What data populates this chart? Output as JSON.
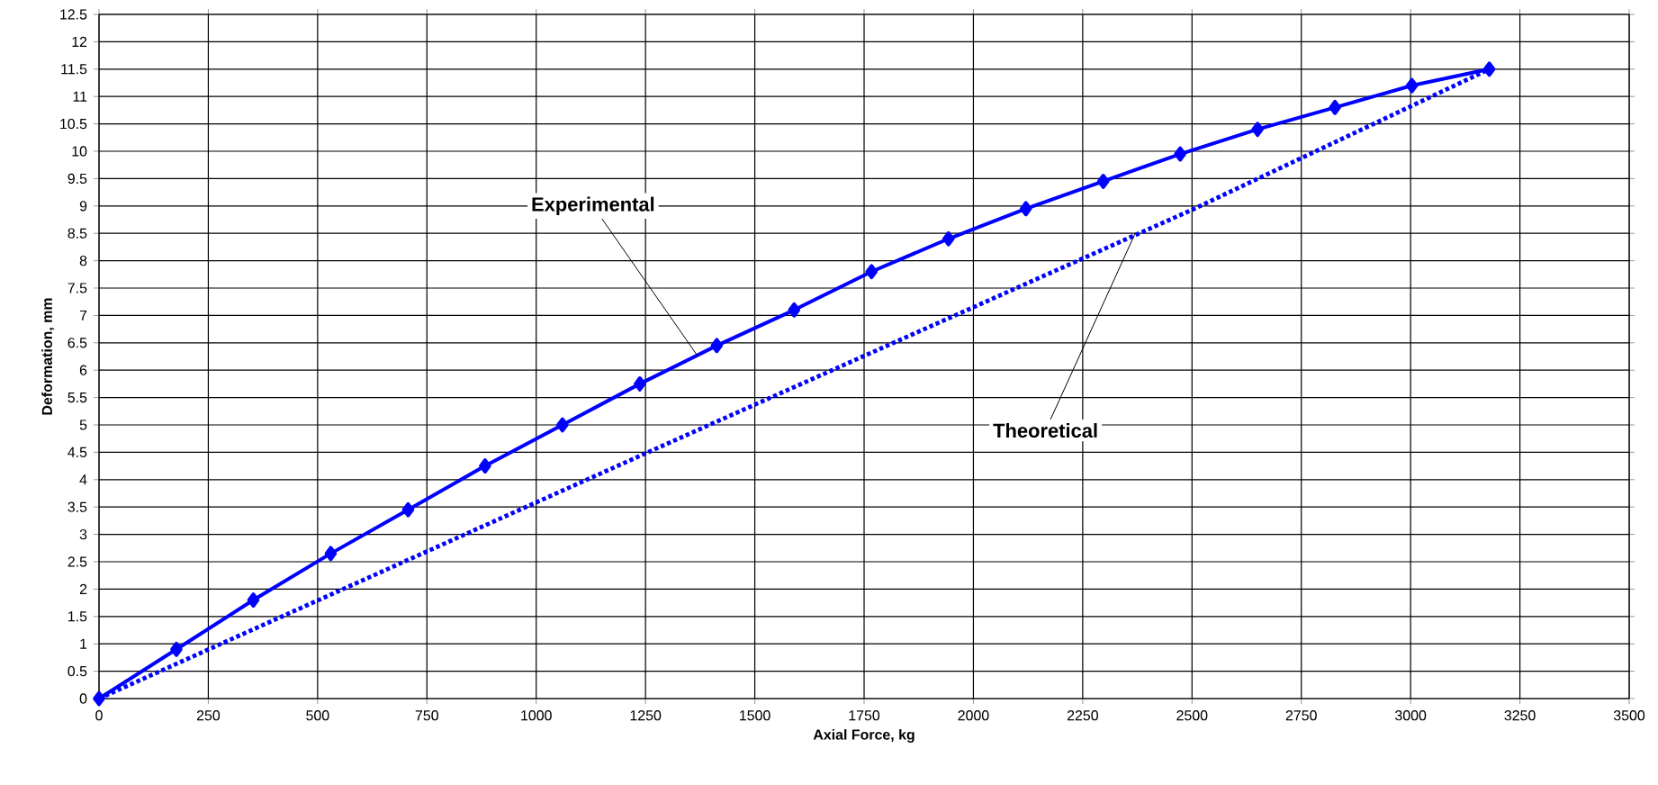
{
  "chart_data": {
    "type": "line",
    "xlabel": "Axial Force, kg",
    "ylabel": "Deformation, mm",
    "series": [
      {
        "color": "#0000ff",
        "marker": "diamond",
        "line_style": "solid",
        "x": [
          0,
          177,
          353,
          530,
          707,
          883,
          1060,
          1237,
          1413,
          1590,
          1767,
          1943,
          2120,
          2297,
          2473,
          2650,
          2827,
          3003,
          3180
        ],
        "values": [
          0,
          0.9,
          1.8,
          2.65,
          3.45,
          4.25,
          5.0,
          5.75,
          6.45,
          7.1,
          7.8,
          8.4,
          8.95,
          9.45,
          9.95,
          10.4,
          10.8,
          11.2,
          11.5
        ]
      },
      {
        "color": "#0000ff",
        "marker": "none",
        "line_style": "dotted",
        "x": [
          0,
          1250,
          2500,
          3180
        ],
        "values": [
          0,
          4.48,
          8.93,
          11.5
        ]
      }
    ],
    "annotations": [
      {
        "text": "Experimental",
        "x": 1370,
        "y": 6.25
      },
      {
        "text": "Theoretical",
        "x": 2370,
        "y": 8.5
      }
    ],
    "xlim": [
      0,
      3500
    ],
    "xticks": [
      0,
      250,
      500,
      750,
      1000,
      1250,
      1500,
      1750,
      2000,
      2250,
      2500,
      2750,
      3000,
      3250,
      3500
    ],
    "ylim": [
      0,
      12.5
    ],
    "yticks": [
      0,
      0.5,
      1,
      1.5,
      2,
      2.5,
      3,
      3.5,
      4,
      4.5,
      5,
      5.5,
      6,
      6.5,
      7,
      7.5,
      8,
      8.5,
      9,
      9.5,
      10,
      10.5,
      11,
      11.5,
      12,
      12.5
    ],
    "grid": true
  }
}
